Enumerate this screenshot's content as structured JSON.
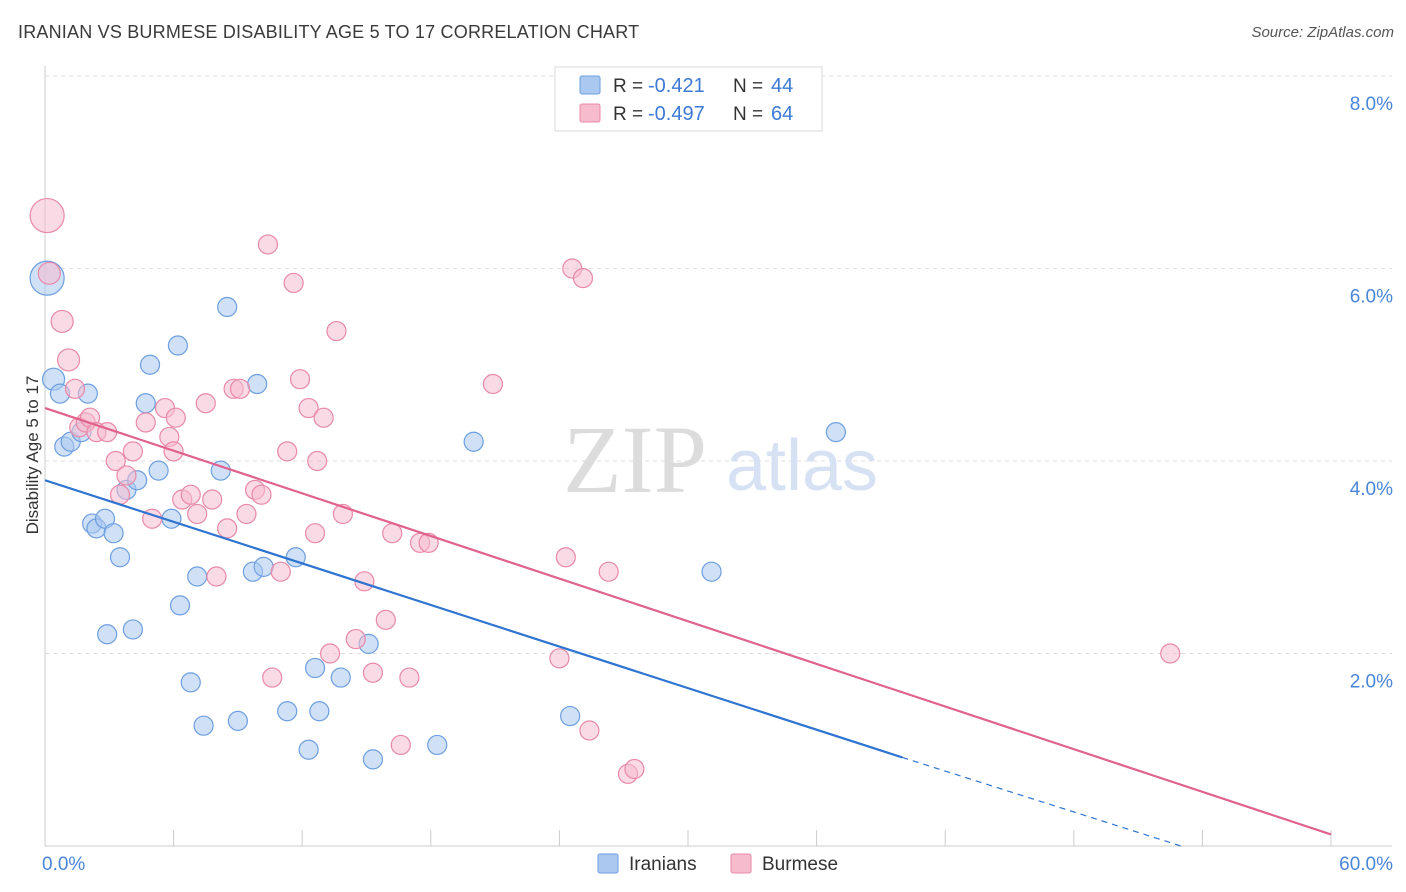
{
  "title": "IRANIAN VS BURMESE DISABILITY AGE 5 TO 17 CORRELATION CHART",
  "source": "Source: ZipAtlas.com",
  "watermark": {
    "zip": "ZIP",
    "atlas": "atlas"
  },
  "legend_box": {
    "rows": [
      {
        "r_label": "R =",
        "r_value": "-0.421",
        "n_label": "N =",
        "n_value": "44",
        "color": "#aac8f0",
        "edge": "#6d9fe0"
      },
      {
        "r_label": "R =",
        "r_value": "-0.497",
        "n_label": "N =",
        "n_value": "64",
        "color": "#f6bccd",
        "edge": "#e889a8"
      }
    ]
  },
  "chart_data": {
    "type": "scatter",
    "title": "IRANIAN VS BURMESE DISABILITY AGE 5 TO 17 CORRELATION CHART",
    "xlabel": "",
    "ylabel": "Disability Age 5 to 17",
    "xlim": [
      0,
      60
    ],
    "ylim": [
      0,
      8.0
    ],
    "x_tick_labels": [
      "0.0%",
      "60.0%"
    ],
    "y_tick_labels": [
      "2.0%",
      "4.0%",
      "6.0%",
      "8.0%"
    ],
    "y_ticks": [
      2.0,
      4.0,
      6.0,
      8.0
    ],
    "grid": "horizontal dashed",
    "legend_position": "bottom-center",
    "series": [
      {
        "name": "Iranians",
        "color": "#aac8f0",
        "edge": "#6d9fe0",
        "line_color": "#2f74d0",
        "trend": {
          "x0": 0,
          "y0": 3.8,
          "x1": 40,
          "y1": 0.92,
          "dashed_to_x": 53,
          "dashed_to_y": 0
        },
        "points": [
          [
            0.1,
            5.9
          ],
          [
            0.4,
            4.85
          ],
          [
            0.7,
            4.7
          ],
          [
            0.9,
            4.15
          ],
          [
            1.2,
            4.2
          ],
          [
            1.7,
            4.3
          ],
          [
            2.0,
            4.7
          ],
          [
            2.2,
            3.35
          ],
          [
            2.4,
            3.3
          ],
          [
            2.8,
            3.4
          ],
          [
            3.2,
            3.25
          ],
          [
            3.5,
            3.0
          ],
          [
            3.8,
            3.7
          ],
          [
            4.3,
            3.8
          ],
          [
            4.7,
            4.6
          ],
          [
            4.9,
            5.0
          ],
          [
            5.3,
            3.9
          ],
          [
            5.9,
            3.4
          ],
          [
            6.2,
            5.2
          ],
          [
            6.3,
            2.5
          ],
          [
            6.8,
            1.7
          ],
          [
            7.1,
            2.8
          ],
          [
            8.2,
            3.9
          ],
          [
            8.5,
            5.6
          ],
          [
            9.0,
            1.3
          ],
          [
            9.7,
            2.85
          ],
          [
            9.9,
            4.8
          ],
          [
            10.2,
            2.9
          ],
          [
            11.3,
            1.4
          ],
          [
            11.7,
            3.0
          ],
          [
            12.3,
            1.0
          ],
          [
            12.6,
            1.85
          ],
          [
            12.8,
            1.4
          ],
          [
            13.8,
            1.75
          ],
          [
            15.1,
            2.1
          ],
          [
            15.3,
            0.9
          ],
          [
            18.3,
            1.05
          ],
          [
            20.0,
            4.2
          ],
          [
            2.9,
            2.2
          ],
          [
            4.1,
            2.25
          ],
          [
            7.4,
            1.25
          ],
          [
            24.5,
            1.35
          ],
          [
            31.1,
            2.85
          ],
          [
            36.9,
            4.3
          ]
        ]
      },
      {
        "name": "Burmese",
        "color": "#f6bccd",
        "edge": "#e889a8",
        "line_color": "#e0638d",
        "trend": {
          "x0": 0,
          "y0": 4.55,
          "x1": 60,
          "y1": 0.12
        },
        "points": [
          [
            0.1,
            6.55
          ],
          [
            0.2,
            5.95
          ],
          [
            0.8,
            5.45
          ],
          [
            1.1,
            5.05
          ],
          [
            1.4,
            4.75
          ],
          [
            1.6,
            4.35
          ],
          [
            1.9,
            4.4
          ],
          [
            2.1,
            4.45
          ],
          [
            2.4,
            4.3
          ],
          [
            2.9,
            4.3
          ],
          [
            3.3,
            4.0
          ],
          [
            3.5,
            3.65
          ],
          [
            3.8,
            3.85
          ],
          [
            4.1,
            4.1
          ],
          [
            4.7,
            4.4
          ],
          [
            5.0,
            3.4
          ],
          [
            5.6,
            4.55
          ],
          [
            5.8,
            4.25
          ],
          [
            6.0,
            4.1
          ],
          [
            6.4,
            3.6
          ],
          [
            6.8,
            3.65
          ],
          [
            7.1,
            3.45
          ],
          [
            7.5,
            4.6
          ],
          [
            7.8,
            3.6
          ],
          [
            8.0,
            2.8
          ],
          [
            8.5,
            3.3
          ],
          [
            8.8,
            4.75
          ],
          [
            9.1,
            4.75
          ],
          [
            9.4,
            3.45
          ],
          [
            9.8,
            3.7
          ],
          [
            10.1,
            3.65
          ],
          [
            10.4,
            6.25
          ],
          [
            10.6,
            1.75
          ],
          [
            11.0,
            2.85
          ],
          [
            11.3,
            4.1
          ],
          [
            11.6,
            5.85
          ],
          [
            11.9,
            4.85
          ],
          [
            12.3,
            4.55
          ],
          [
            12.6,
            3.25
          ],
          [
            13.0,
            4.45
          ],
          [
            13.3,
            2.0
          ],
          [
            13.6,
            5.35
          ],
          [
            13.9,
            3.45
          ],
          [
            14.5,
            2.15
          ],
          [
            14.9,
            2.75
          ],
          [
            15.3,
            1.8
          ],
          [
            15.9,
            2.35
          ],
          [
            16.2,
            3.25
          ],
          [
            16.6,
            1.05
          ],
          [
            17.0,
            1.75
          ],
          [
            17.5,
            3.15
          ],
          [
            17.9,
            3.15
          ],
          [
            20.9,
            4.8
          ],
          [
            24.0,
            1.95
          ],
          [
            24.3,
            3.0
          ],
          [
            24.6,
            6.0
          ],
          [
            25.1,
            5.9
          ],
          [
            25.4,
            1.2
          ],
          [
            26.3,
            2.85
          ],
          [
            27.2,
            0.75
          ],
          [
            27.5,
            0.8
          ],
          [
            52.5,
            2.0
          ],
          [
            6.1,
            4.45
          ],
          [
            12.7,
            4.0
          ]
        ]
      }
    ]
  },
  "bottom_legend": [
    {
      "label": "Iranians",
      "color": "#aac8f0",
      "edge": "#6d9fe0"
    },
    {
      "label": "Burmese",
      "color": "#f6bccd",
      "edge": "#e889a8"
    }
  ]
}
